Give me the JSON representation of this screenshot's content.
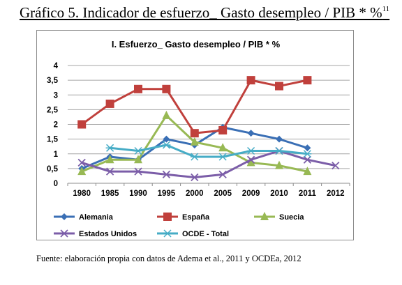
{
  "heading": {
    "text": "Gráfico 5. Indicador de esfuerzo_ Gasto desempleo / PIB * %",
    "footnote": "11"
  },
  "source": "Fuente: elaboración propia con datos de Adema et al., 2011 y OCDEa, 2012",
  "chart_data": {
    "type": "line",
    "title": "I. Esfuerzo_ Gasto desempleo / PIB * %",
    "categories": [
      "1980",
      "1985",
      "1990",
      "1995",
      "2000",
      "2005",
      "2009",
      "2010",
      "2011",
      "2012"
    ],
    "ylim": [
      0,
      4
    ],
    "yticks": [
      "0",
      "0,5",
      "1",
      "1,5",
      "2",
      "2,5",
      "3",
      "3,5",
      "4"
    ],
    "grid": true,
    "legend_position": "bottom",
    "series": [
      {
        "name": "Alemania",
        "color": "#3a6fb5",
        "marker": "diamond",
        "values": [
          0.5,
          0.9,
          0.8,
          1.5,
          1.3,
          1.9,
          1.7,
          1.5,
          1.2,
          null
        ]
      },
      {
        "name": "España",
        "color": "#c0403c",
        "marker": "square",
        "values": [
          2.0,
          2.7,
          3.2,
          3.2,
          1.7,
          1.8,
          3.5,
          3.3,
          3.5,
          null
        ]
      },
      {
        "name": "Suecia",
        "color": "#98b954",
        "marker": "triangle",
        "values": [
          0.4,
          0.8,
          0.8,
          2.3,
          1.4,
          1.2,
          0.7,
          0.6,
          0.4,
          null
        ]
      },
      {
        "name": "Estados Unidos",
        "color": "#7b5da8",
        "marker": "x",
        "values": [
          0.7,
          0.4,
          0.4,
          0.3,
          0.2,
          0.3,
          0.8,
          1.1,
          0.8,
          0.6
        ]
      },
      {
        "name": "OCDE - Total",
        "color": "#46acc6",
        "marker": "asterisk",
        "values": [
          null,
          1.2,
          1.1,
          1.3,
          0.9,
          0.9,
          1.1,
          1.1,
          1.0,
          null
        ]
      }
    ]
  }
}
